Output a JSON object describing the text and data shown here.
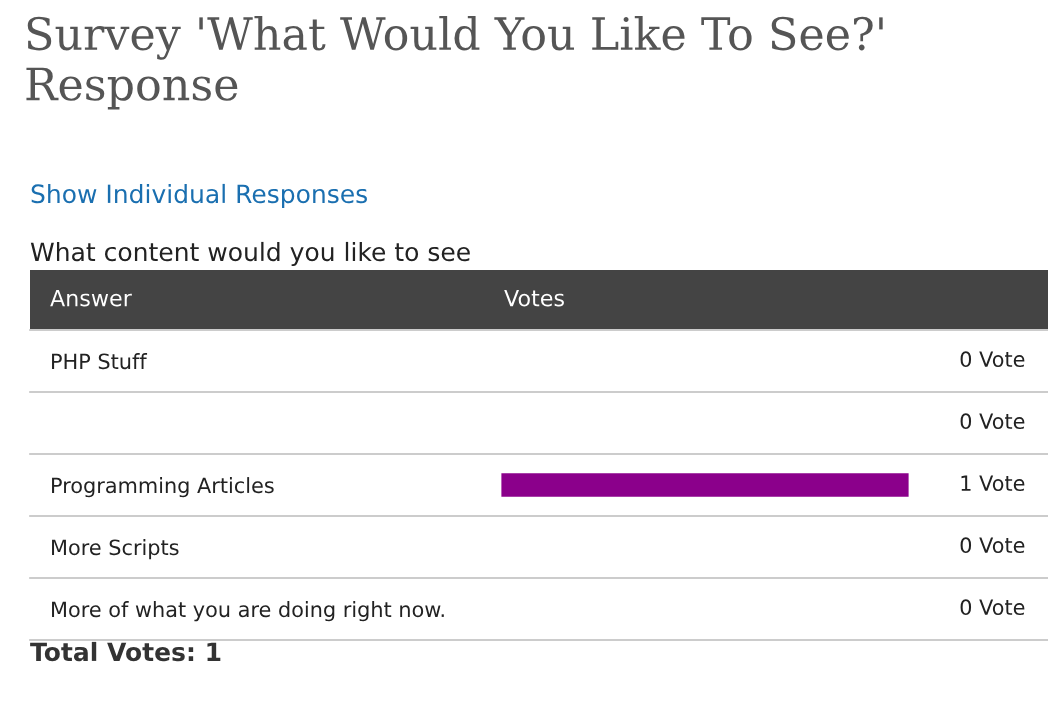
{
  "chart_data": {
    "type": "bar",
    "orientation": "horizontal",
    "title": "Survey 'What Would You Like To See?' Response",
    "subtitle": "What content would you like to see",
    "ylabel": "Answer",
    "xlabel": "Votes",
    "annotations": [
      "Show Individual Responses",
      "Total Votes: 1"
    ],
    "categories": [
      "PHP Stuff",
      null,
      "Programming Articles",
      "More Scripts",
      "More of what you are doing right now."
    ],
    "values": [
      0,
      0,
      1,
      0,
      0
    ],
    "value_labels": [
      "0 Vote",
      "0 Vote",
      "1 Vote",
      "0 Vote",
      "0 Vote"
    ],
    "color": "#8b008b",
    "grid": false,
    "legend": false
  }
}
